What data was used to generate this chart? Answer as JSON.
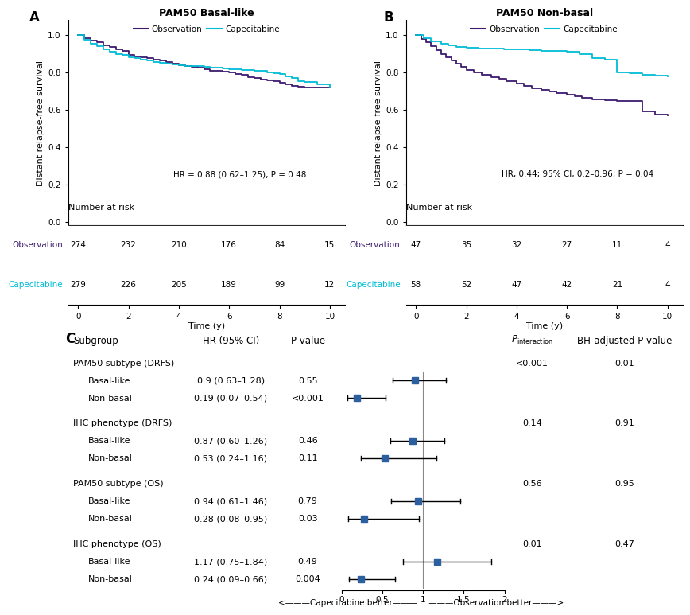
{
  "panel_A": {
    "title": "PAM50 Basal-like",
    "obs_color": "#3d1a6e",
    "cap_color": "#00bcd4",
    "obs_times": [
      0,
      0.25,
      0.5,
      0.75,
      1.0,
      1.25,
      1.5,
      1.75,
      2.0,
      2.25,
      2.5,
      2.75,
      3.0,
      3.25,
      3.5,
      3.75,
      4.0,
      4.25,
      4.5,
      4.75,
      5.0,
      5.25,
      5.5,
      5.75,
      6.0,
      6.25,
      6.5,
      6.75,
      7.0,
      7.25,
      7.5,
      7.75,
      8.0,
      8.25,
      8.5,
      8.75,
      9.0,
      9.5,
      10.0
    ],
    "obs_surv": [
      1.0,
      0.985,
      0.97,
      0.96,
      0.945,
      0.935,
      0.925,
      0.915,
      0.895,
      0.885,
      0.88,
      0.875,
      0.87,
      0.862,
      0.855,
      0.848,
      0.84,
      0.835,
      0.83,
      0.825,
      0.815,
      0.81,
      0.808,
      0.804,
      0.8,
      0.793,
      0.785,
      0.775,
      0.77,
      0.762,
      0.758,
      0.752,
      0.745,
      0.735,
      0.728,
      0.724,
      0.72,
      0.72,
      0.72
    ],
    "cap_times": [
      0,
      0.25,
      0.5,
      0.75,
      1.0,
      1.25,
      1.5,
      1.75,
      2.0,
      2.25,
      2.5,
      2.75,
      3.0,
      3.25,
      3.5,
      3.75,
      4.0,
      4.25,
      4.5,
      4.75,
      5.0,
      5.25,
      5.5,
      5.75,
      6.0,
      6.25,
      6.5,
      6.75,
      7.0,
      7.25,
      7.5,
      7.75,
      8.0,
      8.25,
      8.5,
      8.75,
      9.0,
      9.5,
      10.0
    ],
    "cap_surv": [
      1.0,
      0.975,
      0.955,
      0.94,
      0.925,
      0.91,
      0.9,
      0.892,
      0.882,
      0.875,
      0.868,
      0.862,
      0.856,
      0.852,
      0.848,
      0.844,
      0.84,
      0.836,
      0.834,
      0.832,
      0.83,
      0.826,
      0.824,
      0.82,
      0.818,
      0.816,
      0.814,
      0.812,
      0.81,
      0.808,
      0.8,
      0.796,
      0.792,
      0.78,
      0.77,
      0.755,
      0.748,
      0.738,
      0.725
    ],
    "annotation": "HR = 0.88 (0.62–1.25), P = 0.48",
    "at_risk_obs": [
      274,
      232,
      210,
      176,
      84,
      15
    ],
    "at_risk_cap": [
      279,
      226,
      205,
      189,
      99,
      12
    ],
    "at_risk_times": [
      0,
      2,
      4,
      6,
      8,
      10
    ]
  },
  "panel_B": {
    "title": "PAM50 Non-basal",
    "obs_color": "#3d1a6e",
    "cap_color": "#00bcd4",
    "obs_times": [
      0,
      0.2,
      0.4,
      0.6,
      0.8,
      1.0,
      1.2,
      1.4,
      1.6,
      1.8,
      2.0,
      2.3,
      2.6,
      3.0,
      3.3,
      3.6,
      4.0,
      4.3,
      4.6,
      5.0,
      5.3,
      5.6,
      6.0,
      6.3,
      6.6,
      7.0,
      7.5,
      8.0,
      8.5,
      9.0,
      9.5,
      10.0
    ],
    "obs_surv": [
      1.0,
      0.98,
      0.96,
      0.94,
      0.92,
      0.9,
      0.88,
      0.862,
      0.845,
      0.828,
      0.812,
      0.8,
      0.788,
      0.776,
      0.764,
      0.752,
      0.74,
      0.728,
      0.716,
      0.704,
      0.696,
      0.688,
      0.68,
      0.672,
      0.664,
      0.656,
      0.65,
      0.648,
      0.645,
      0.59,
      0.575,
      0.57
    ],
    "cap_times": [
      0,
      0.3,
      0.6,
      1.0,
      1.3,
      1.6,
      2.0,
      2.5,
      3.0,
      3.5,
      4.0,
      4.5,
      5.0,
      5.5,
      6.0,
      6.5,
      7.0,
      7.5,
      8.0,
      8.5,
      9.0,
      9.5,
      10.0
    ],
    "cap_surv": [
      1.0,
      0.982,
      0.964,
      0.952,
      0.944,
      0.936,
      0.93,
      0.928,
      0.926,
      0.924,
      0.922,
      0.92,
      0.916,
      0.914,
      0.912,
      0.9,
      0.875,
      0.87,
      0.8,
      0.795,
      0.788,
      0.782,
      0.78
    ],
    "annotation": "HR, 0.44; 95% CI, 0.2–0.96; P = 0.04",
    "at_risk_obs": [
      47,
      35,
      32,
      27,
      11,
      4
    ],
    "at_risk_cap": [
      58,
      52,
      47,
      42,
      21,
      4
    ],
    "at_risk_times": [
      0,
      2,
      4,
      6,
      8,
      10
    ]
  },
  "panel_C": {
    "groups": [
      {
        "label": "PAM50 subtype (DRFS)",
        "header": true,
        "p_int": "<0.001",
        "bh_p": "0.01"
      },
      {
        "label": "Basal-like",
        "hr": 0.9,
        "ci_lo": 0.63,
        "ci_hi": 1.28,
        "p_val": "0.55",
        "hr_text": "0.9 (0.63–1.28)"
      },
      {
        "label": "Non-basal",
        "hr": 0.19,
        "ci_lo": 0.07,
        "ci_hi": 0.54,
        "p_val": "<0.001",
        "hr_text": "0.19 (0.07–0.54)"
      },
      {
        "label": "IHC phenotype (DRFS)",
        "header": true,
        "p_int": "0.14",
        "bh_p": "0.91"
      },
      {
        "label": "Basal-like",
        "hr": 0.87,
        "ci_lo": 0.6,
        "ci_hi": 1.26,
        "p_val": "0.46",
        "hr_text": "0.87 (0.60–1.26)"
      },
      {
        "label": "Non-basal",
        "hr": 0.53,
        "ci_lo": 0.24,
        "ci_hi": 1.16,
        "p_val": "0.11",
        "hr_text": "0.53 (0.24–1.16)"
      },
      {
        "label": "PAM50 subtype (OS)",
        "header": true,
        "p_int": "0.56",
        "bh_p": "0.95"
      },
      {
        "label": "Basal-like",
        "hr": 0.94,
        "ci_lo": 0.61,
        "ci_hi": 1.46,
        "p_val": "0.79",
        "hr_text": "0.94 (0.61–1.46)"
      },
      {
        "label": "Non-basal",
        "hr": 0.28,
        "ci_lo": 0.08,
        "ci_hi": 0.95,
        "p_val": "0.03",
        "hr_text": "0.28 (0.08–0.95)"
      },
      {
        "label": "IHC phenotype (OS)",
        "header": true,
        "p_int": "0.01",
        "bh_p": "0.47"
      },
      {
        "label": "Basal-like",
        "hr": 1.17,
        "ci_lo": 0.75,
        "ci_hi": 1.84,
        "p_val": "0.49",
        "hr_text": "1.17 (0.75–1.84)"
      },
      {
        "label": "Non-basal",
        "hr": 0.24,
        "ci_lo": 0.09,
        "ci_hi": 0.66,
        "p_val": "0.004",
        "hr_text": "0.24 (0.09–0.66)"
      }
    ],
    "dot_color": "#2b5fa0",
    "line_color": "#000000"
  },
  "obs_label": "Observation",
  "cap_label": "Capecitabine",
  "ylabel": "Distant relapse-free survival",
  "xlabel": "Time (y)",
  "nar_label": "Number at risk"
}
